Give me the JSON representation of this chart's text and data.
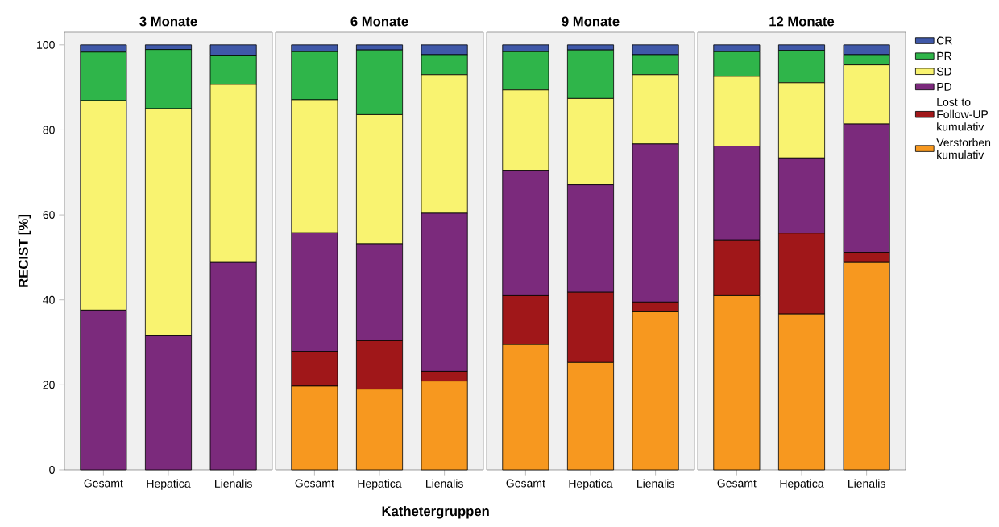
{
  "chart_data": [
    {
      "type": "bar",
      "stacked": true,
      "title": "3 Monate",
      "ylabel": "RECIST [%]",
      "categories": [
        "Gesamt",
        "Hepatica",
        "Lienalis"
      ],
      "ylim": [
        0,
        103
      ],
      "yticks": [
        0,
        20,
        40,
        60,
        80,
        100
      ],
      "legend": false,
      "series": [
        {
          "color": "#f7981f",
          "values": [
            0,
            0,
            0
          ]
        },
        {
          "color": "#a01719",
          "values": [
            0,
            0,
            0
          ]
        },
        {
          "color": "#7b2a7c",
          "values": [
            37.6,
            31.7,
            48.8
          ]
        },
        {
          "color": "#f9f370",
          "values": [
            49.3,
            53.3,
            41.9
          ]
        },
        {
          "color": "#2fb54a",
          "values": [
            11.4,
            13.9,
            6.9
          ]
        },
        {
          "color": "#3f58a8",
          "values": [
            1.7,
            1.1,
            2.4
          ]
        }
      ]
    },
    {
      "type": "bar",
      "stacked": true,
      "title": "6 Monate",
      "xlabel": "Kathetergruppen",
      "categories": [
        "Gesamt",
        "Hepatica",
        "Lienalis"
      ],
      "ylim": [
        0,
        103
      ],
      "yticks": [
        0,
        20,
        40,
        60,
        80,
        100
      ],
      "tick_labels": "x",
      "legend": false,
      "series": [
        {
          "color": "#f7981f",
          "values": [
            19.7,
            19.0,
            20.9
          ]
        },
        {
          "color": "#a01719",
          "values": [
            8.2,
            11.4,
            2.3
          ]
        },
        {
          "color": "#7b2a7c",
          "values": [
            27.9,
            22.8,
            37.2
          ]
        },
        {
          "color": "#f9f370",
          "values": [
            31.3,
            30.4,
            32.6
          ]
        },
        {
          "color": "#2fb54a",
          "values": [
            11.3,
            15.2,
            4.7
          ]
        },
        {
          "color": "#3f58a8",
          "values": [
            1.6,
            1.2,
            2.3
          ]
        }
      ]
    },
    {
      "type": "bar",
      "stacked": true,
      "title": "9 Monate",
      "categories": [
        "Gesamt",
        "Hepatica",
        "Lienalis"
      ],
      "ylim": [
        0,
        103
      ],
      "yticks": [
        0,
        20,
        40,
        60,
        80,
        100
      ],
      "tick_labels": "x",
      "legend": false,
      "series": [
        {
          "color": "#f7981f",
          "values": [
            29.5,
            25.3,
            37.2
          ]
        },
        {
          "color": "#a01719",
          "values": [
            11.5,
            16.5,
            2.3
          ]
        },
        {
          "color": "#7b2a7c",
          "values": [
            29.5,
            25.3,
            37.2
          ]
        },
        {
          "color": "#f9f370",
          "values": [
            18.9,
            20.3,
            16.3
          ]
        },
        {
          "color": "#2fb54a",
          "values": [
            9.0,
            11.4,
            4.7
          ]
        },
        {
          "color": "#3f58a8",
          "values": [
            1.6,
            1.2,
            2.3
          ]
        }
      ]
    },
    {
      "type": "bar",
      "stacked": true,
      "title": "12 Monate",
      "categories": [
        "Gesamt",
        "Hepatica",
        "Lienalis"
      ],
      "ylim": [
        0,
        103
      ],
      "yticks": [
        0,
        20,
        40,
        60,
        80,
        100
      ],
      "tick_labels": "x",
      "legend": "right",
      "series": [
        {
          "name": "Verstorben kumulativ",
          "color": "#f7981f",
          "values": [
            41.0,
            36.7,
            48.8
          ]
        },
        {
          "name": "Lost to Follow-UP kumulativ",
          "color": "#a01719",
          "values": [
            13.1,
            19.0,
            2.4
          ]
        },
        {
          "name": "PD",
          "color": "#7b2a7c",
          "values": [
            22.1,
            17.7,
            30.2
          ]
        },
        {
          "name": "SD",
          "color": "#f9f370",
          "values": [
            16.4,
            17.7,
            13.9
          ]
        },
        {
          "name": "PR",
          "color": "#2fb54a",
          "values": [
            5.8,
            7.6,
            2.4
          ]
        },
        {
          "name": "CR",
          "color": "#3f58a8",
          "values": [
            1.6,
            1.3,
            2.3
          ]
        }
      ]
    }
  ]
}
